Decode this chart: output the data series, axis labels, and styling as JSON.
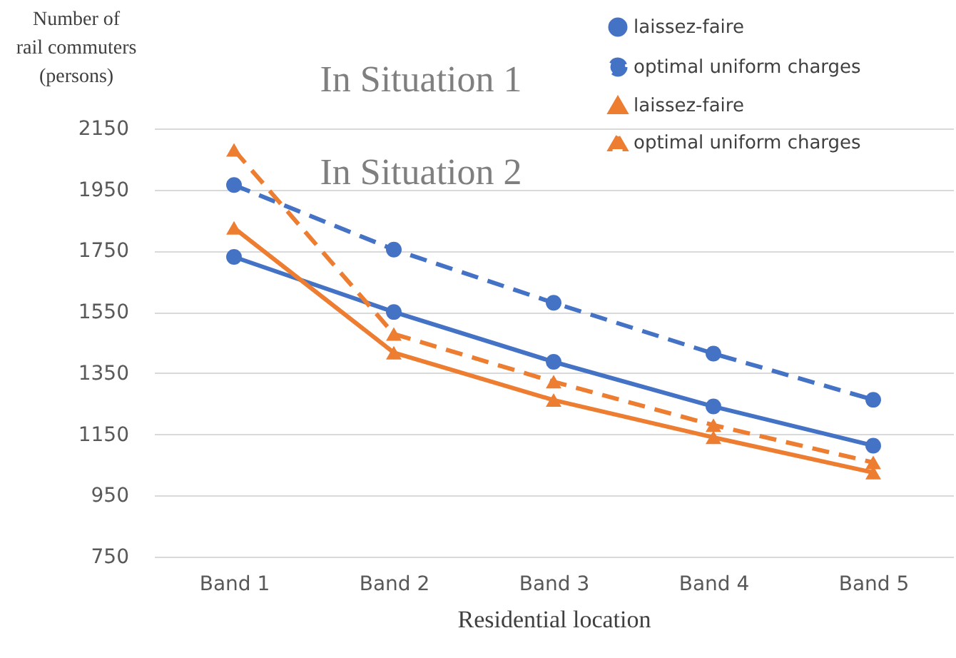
{
  "chart_data": {
    "type": "line",
    "xlabel": "Residential location",
    "ylabel": "Number of rail commuters (persons)",
    "categories": [
      "Band 1",
      "Band 2",
      "Band 3",
      "Band 4",
      "Band 5"
    ],
    "series": [
      {
        "name": "laissez-faire",
        "color": "#4472c4",
        "marker": "circle",
        "line_style": "solid",
        "values": [
          1730,
          1550,
          1387,
          1241,
          1113
        ]
      },
      {
        "name": "optimal uniform charges",
        "color": "#4472c4",
        "marker": "circle",
        "line_style": "dashed",
        "values": [
          1965,
          1754,
          1580,
          1414,
          1263
        ]
      },
      {
        "name": "laissez-faire",
        "color": "#ed7d31",
        "marker": "triangle",
        "line_style": "solid",
        "values": [
          1825,
          1417,
          1262,
          1140,
          1025
        ]
      },
      {
        "name": "optimal uniform charges",
        "color": "#ed7d31",
        "marker": "triangle",
        "line_style": "dashed",
        "values": [
          2080,
          1478,
          1322,
          1180,
          1058
        ]
      }
    ],
    "annotations": [
      "In Situation 1",
      "In Situation 2"
    ],
    "ylim": [
      750,
      2150
    ],
    "yticks": [
      750,
      950,
      1150,
      1350,
      1550,
      1750,
      1950,
      2150
    ],
    "grid": "y",
    "legend": "top right"
  }
}
